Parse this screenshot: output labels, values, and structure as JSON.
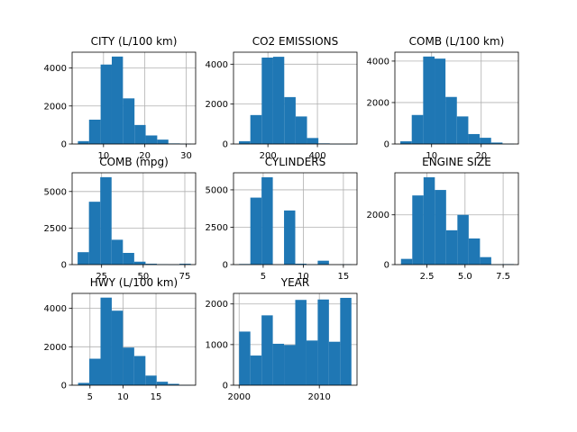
{
  "figure": {
    "background": "#ffffff",
    "bar_color": "#1f77b4",
    "grid_color": "#b0b0b0"
  },
  "chart_data": [
    {
      "type": "bar",
      "title": "CITY (L/100 km)",
      "grid": true,
      "xlim": [
        2.4,
        32.3
      ],
      "ylim": [
        0,
        4830
      ],
      "xticks": [
        10,
        20,
        30
      ],
      "xticklabels": [
        "10",
        "20",
        "30"
      ],
      "yticks": [
        0,
        2000,
        4000
      ],
      "yticklabels": [
        "0",
        "2000",
        "4000"
      ],
      "bin_edges": [
        3.8,
        6.5,
        9.3,
        12.0,
        14.7,
        17.5,
        20.2,
        23.0,
        25.7,
        28.5,
        31.2
      ],
      "values": [
        150,
        1280,
        4180,
        4600,
        2400,
        1000,
        450,
        230,
        30,
        10
      ]
    },
    {
      "type": "bar",
      "title": "CO2 EMISSIONS",
      "grid": true,
      "xlim": [
        61,
        560
      ],
      "ylim": [
        0,
        4600
      ],
      "xticks": [
        200,
        400
      ],
      "xticklabels": [
        "200",
        "400"
      ],
      "yticks": [
        0,
        2000,
        4000
      ],
      "yticklabels": [
        "0",
        "2000",
        "4000"
      ],
      "bin_edges": [
        83,
        129,
        175,
        221,
        266,
        312,
        358,
        404,
        450,
        496,
        542
      ],
      "values": [
        140,
        1450,
        4330,
        4370,
        2350,
        1380,
        300,
        30,
        5,
        5
      ]
    },
    {
      "type": "bar",
      "title": "COMB (L/100 km)",
      "grid": true,
      "xlim": [
        2.6,
        27.5
      ],
      "ylim": [
        0,
        4430
      ],
      "xticks": [
        10,
        20
      ],
      "xticklabels": [
        "10",
        "20"
      ],
      "yticks": [
        0,
        2000,
        4000
      ],
      "yticklabels": [
        "0",
        "2000",
        "4000"
      ],
      "bin_edges": [
        3.7,
        6.0,
        8.3,
        10.6,
        12.8,
        15.1,
        17.4,
        19.7,
        22.0,
        24.3,
        26.6
      ],
      "values": [
        130,
        1400,
        4220,
        4120,
        2270,
        1330,
        480,
        300,
        70,
        10
      ]
    },
    {
      "type": "bar",
      "title": "COMB (mpg)",
      "grid": true,
      "xlim": [
        7.3,
        81.5
      ],
      "ylim": [
        0,
        6280
      ],
      "xticks": [
        25,
        50,
        75
      ],
      "xticklabels": [
        "25",
        "50",
        "75"
      ],
      "yticks": [
        0,
        2500,
        5000
      ],
      "yticklabels": [
        "0",
        "2500",
        "5000"
      ],
      "bin_edges": [
        10.6,
        17.4,
        24.2,
        31.0,
        37.8,
        44.6,
        51.4,
        58.2,
        65.0,
        71.8,
        78.6
      ],
      "values": [
        850,
        4300,
        5980,
        1700,
        800,
        200,
        60,
        30,
        10,
        60
      ]
    },
    {
      "type": "bar",
      "title": "CYLINDERS",
      "grid": true,
      "xlim": [
        1.3,
        16.7
      ],
      "ylim": [
        0,
        6140
      ],
      "xticks": [
        5,
        10,
        15
      ],
      "xticklabels": [
        "5",
        "10",
        "15"
      ],
      "yticks": [
        0,
        2500,
        5000
      ],
      "yticklabels": [
        "0",
        "2500",
        "5000"
      ],
      "bin_edges": [
        2.0,
        3.4,
        4.8,
        6.2,
        7.6,
        9.0,
        10.4,
        11.8,
        13.2,
        14.6,
        16.0
      ],
      "values": [
        40,
        4480,
        5840,
        0,
        3620,
        60,
        20,
        260,
        0,
        20
      ]
    },
    {
      "type": "bar",
      "title": "ENGINE SIZE",
      "grid": true,
      "xlim": [
        0.4,
        8.5
      ],
      "ylim": [
        0,
        3690
      ],
      "xticks": [
        2.5,
        5.0,
        7.5
      ],
      "xticklabels": [
        "2.5",
        "5.0",
        "7.5"
      ],
      "yticks": [
        0,
        2000
      ],
      "yticklabels": [
        "0",
        "2000"
      ],
      "bin_edges": [
        0.8,
        1.54,
        2.28,
        3.02,
        3.76,
        4.5,
        5.24,
        5.98,
        6.72,
        7.46,
        8.2
      ],
      "values": [
        230,
        2780,
        3510,
        3000,
        1380,
        2000,
        1050,
        300,
        10,
        20
      ]
    },
    {
      "type": "bar",
      "title": "HWY (L/100 km)",
      "grid": true,
      "xlim": [
        2.3,
        21.0
      ],
      "ylim": [
        0,
        4780
      ],
      "xticks": [
        5,
        10,
        15
      ],
      "xticklabels": [
        "5",
        "10",
        "15"
      ],
      "yticks": [
        0,
        2000,
        4000
      ],
      "yticklabels": [
        "0",
        "2000",
        "4000"
      ],
      "bin_edges": [
        3.2,
        4.9,
        6.6,
        8.3,
        10.0,
        11.7,
        13.4,
        15.1,
        16.8,
        18.5,
        20.2
      ],
      "values": [
        120,
        1380,
        4560,
        3880,
        1960,
        1520,
        500,
        180,
        70,
        10
      ]
    },
    {
      "type": "bar",
      "title": "YEAR",
      "grid": true,
      "xlim": [
        1999.3,
        2014.7
      ],
      "ylim": [
        0,
        2260
      ],
      "xticks": [
        2000,
        2010
      ],
      "xticklabels": [
        "2000",
        "2010"
      ],
      "yticks": [
        0,
        1000,
        2000
      ],
      "yticklabels": [
        "0",
        "1000",
        "2000"
      ],
      "bin_edges": [
        2000,
        2001.4,
        2002.8,
        2004.2,
        2005.6,
        2007.0,
        2008.4,
        2009.8,
        2011.2,
        2012.6,
        2014.0
      ],
      "values": [
        1320,
        730,
        1720,
        1020,
        990,
        2100,
        1100,
        2110,
        1070,
        2150
      ]
    }
  ]
}
